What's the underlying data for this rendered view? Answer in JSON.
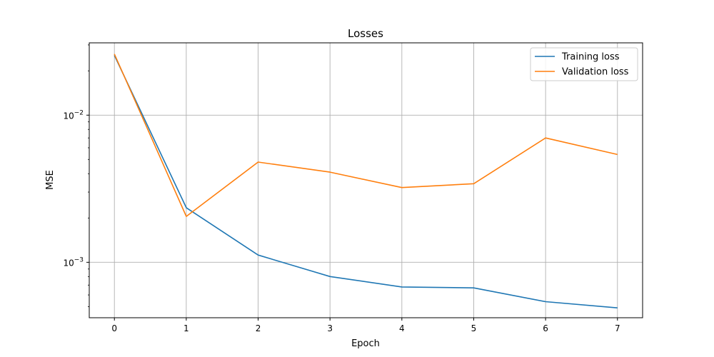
{
  "chart_data": {
    "type": "line",
    "title": "Losses",
    "xlabel": "Epoch",
    "ylabel": "MSE",
    "yscale": "log",
    "x": [
      0,
      1,
      2,
      3,
      4,
      5,
      6,
      7
    ],
    "xlim": [
      -0.35,
      7.35
    ],
    "ylim": [
      0.00042,
      0.031
    ],
    "xticks": [
      "0",
      "1",
      "2",
      "3",
      "4",
      "5",
      "6",
      "7"
    ],
    "yticks": [
      {
        "value": 0.01,
        "base": "10",
        "exp": "−2"
      },
      {
        "value": 0.001,
        "base": "10",
        "exp": "−3"
      }
    ],
    "grid": true,
    "legend_position": "top-right",
    "series": [
      {
        "name": "Training loss",
        "color": "#1f77b4",
        "values": [
          0.0255,
          0.00235,
          0.00112,
          0.0008,
          0.00068,
          0.00067,
          0.00054,
          0.00049
        ]
      },
      {
        "name": "Validation loss",
        "color": "#ff7f0e",
        "values": [
          0.026,
          0.00205,
          0.0048,
          0.0041,
          0.00322,
          0.00342,
          0.007,
          0.0054
        ]
      }
    ]
  }
}
